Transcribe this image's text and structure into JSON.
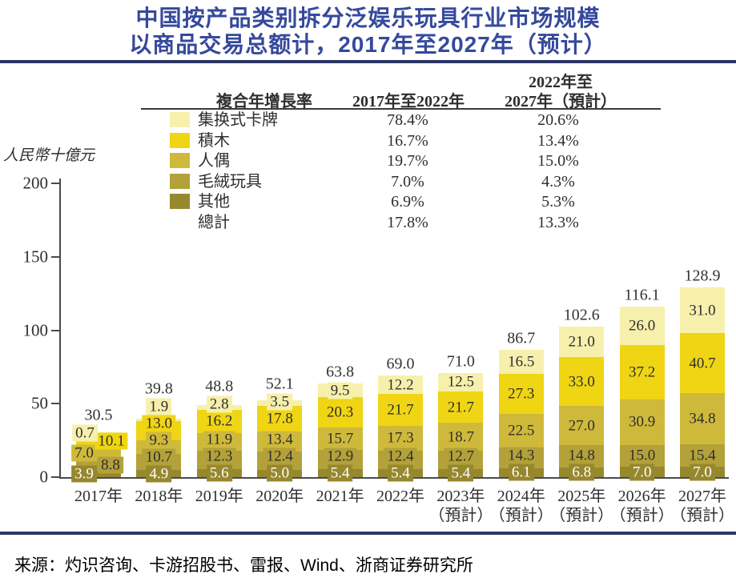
{
  "title": {
    "line1": "中国按产品类别拆分泛娱乐玩具行业市场规模",
    "line2": "以商品交易总额计，2017年至2027年（预计）"
  },
  "colors": {
    "title_blue": "#35499C",
    "rule_navy": "#2A3564",
    "axis_gray": "#4a4a4a",
    "label_dark": "#2e2e2e"
  },
  "cagr_table": {
    "col_growth": "複合年增長率",
    "col_period1": "2017年至2022年",
    "col_period2_line1": "2022年至",
    "col_period2_line2": "2027年（預計）",
    "rows": [
      {
        "label": "集换式卡牌",
        "cagr_2017_2022": "78.4%",
        "cagr_2022_2027": "20.6%",
        "color": "#F6F0AC"
      },
      {
        "label": "積木",
        "cagr_2017_2022": "16.7%",
        "cagr_2022_2027": "13.4%",
        "color": "#EFD513"
      },
      {
        "label": "人偶",
        "cagr_2017_2022": "19.7%",
        "cagr_2022_2027": "15.0%",
        "color": "#CFB93B"
      },
      {
        "label": "毛絨玩具",
        "cagr_2017_2022": "7.0%",
        "cagr_2022_2027": "4.3%",
        "color": "#B3A139"
      },
      {
        "label": "其他",
        "cagr_2017_2022": "6.9%",
        "cagr_2022_2027": "5.3%",
        "color": "#97882E"
      },
      {
        "label": "總計",
        "cagr_2017_2022": "17.8%",
        "cagr_2022_2027": "13.3%",
        "color": null
      }
    ]
  },
  "chart_data": {
    "type": "bar",
    "stacked": true,
    "unit_label": "人民幣十億元",
    "ylim": [
      0,
      200
    ],
    "yticks": [
      0,
      50,
      100,
      150,
      200
    ],
    "grid": false,
    "categories": [
      {
        "label": "2017年",
        "sublabel": ""
      },
      {
        "label": "2018年",
        "sublabel": ""
      },
      {
        "label": "2019年",
        "sublabel": ""
      },
      {
        "label": "2020年",
        "sublabel": ""
      },
      {
        "label": "2021年",
        "sublabel": ""
      },
      {
        "label": "2022年",
        "sublabel": ""
      },
      {
        "label": "2023年",
        "sublabel": "（預計）"
      },
      {
        "label": "2024年",
        "sublabel": "（預計）"
      },
      {
        "label": "2025年",
        "sublabel": "（預計）"
      },
      {
        "label": "2026年",
        "sublabel": "（預計）"
      },
      {
        "label": "2027年",
        "sublabel": "（預計）"
      }
    ],
    "series": [
      {
        "name": "其他",
        "color": "#97882E",
        "text_color": "#ffffff",
        "values": [
          3.9,
          4.9,
          5.6,
          5.0,
          5.4,
          5.4,
          5.4,
          6.1,
          6.8,
          7.0,
          7.0
        ]
      },
      {
        "name": "毛絨玩具",
        "color": "#B3A139",
        "text_color": "#2e2e2e",
        "values": [
          8.8,
          10.7,
          12.3,
          12.4,
          12.9,
          12.4,
          12.7,
          14.3,
          14.8,
          15.0,
          15.4
        ]
      },
      {
        "name": "人偶",
        "color": "#CFB93B",
        "text_color": "#2e2e2e",
        "values": [
          7.0,
          9.3,
          11.9,
          13.4,
          15.7,
          17.3,
          18.7,
          22.5,
          27.0,
          30.9,
          34.8
        ]
      },
      {
        "name": "積木",
        "color": "#EFD513",
        "text_color": "#2e2e2e",
        "values": [
          10.1,
          13.0,
          16.2,
          17.8,
          20.3,
          21.7,
          21.7,
          27.3,
          33.0,
          37.2,
          40.7
        ]
      },
      {
        "name": "集换式卡牌",
        "color": "#F6F0AC",
        "text_color": "#2e2e2e",
        "values": [
          0.7,
          1.9,
          2.8,
          3.5,
          9.5,
          12.2,
          12.5,
          16.5,
          21.0,
          26.0,
          31.0
        ]
      }
    ],
    "totals": [
      30.5,
      39.8,
      48.8,
      52.1,
      63.8,
      69.0,
      71.0,
      86.7,
      102.6,
      116.1,
      128.9
    ]
  },
  "source": "来源：灼识咨询、卡游招股书、雷报、Wind、浙商证券研究所"
}
